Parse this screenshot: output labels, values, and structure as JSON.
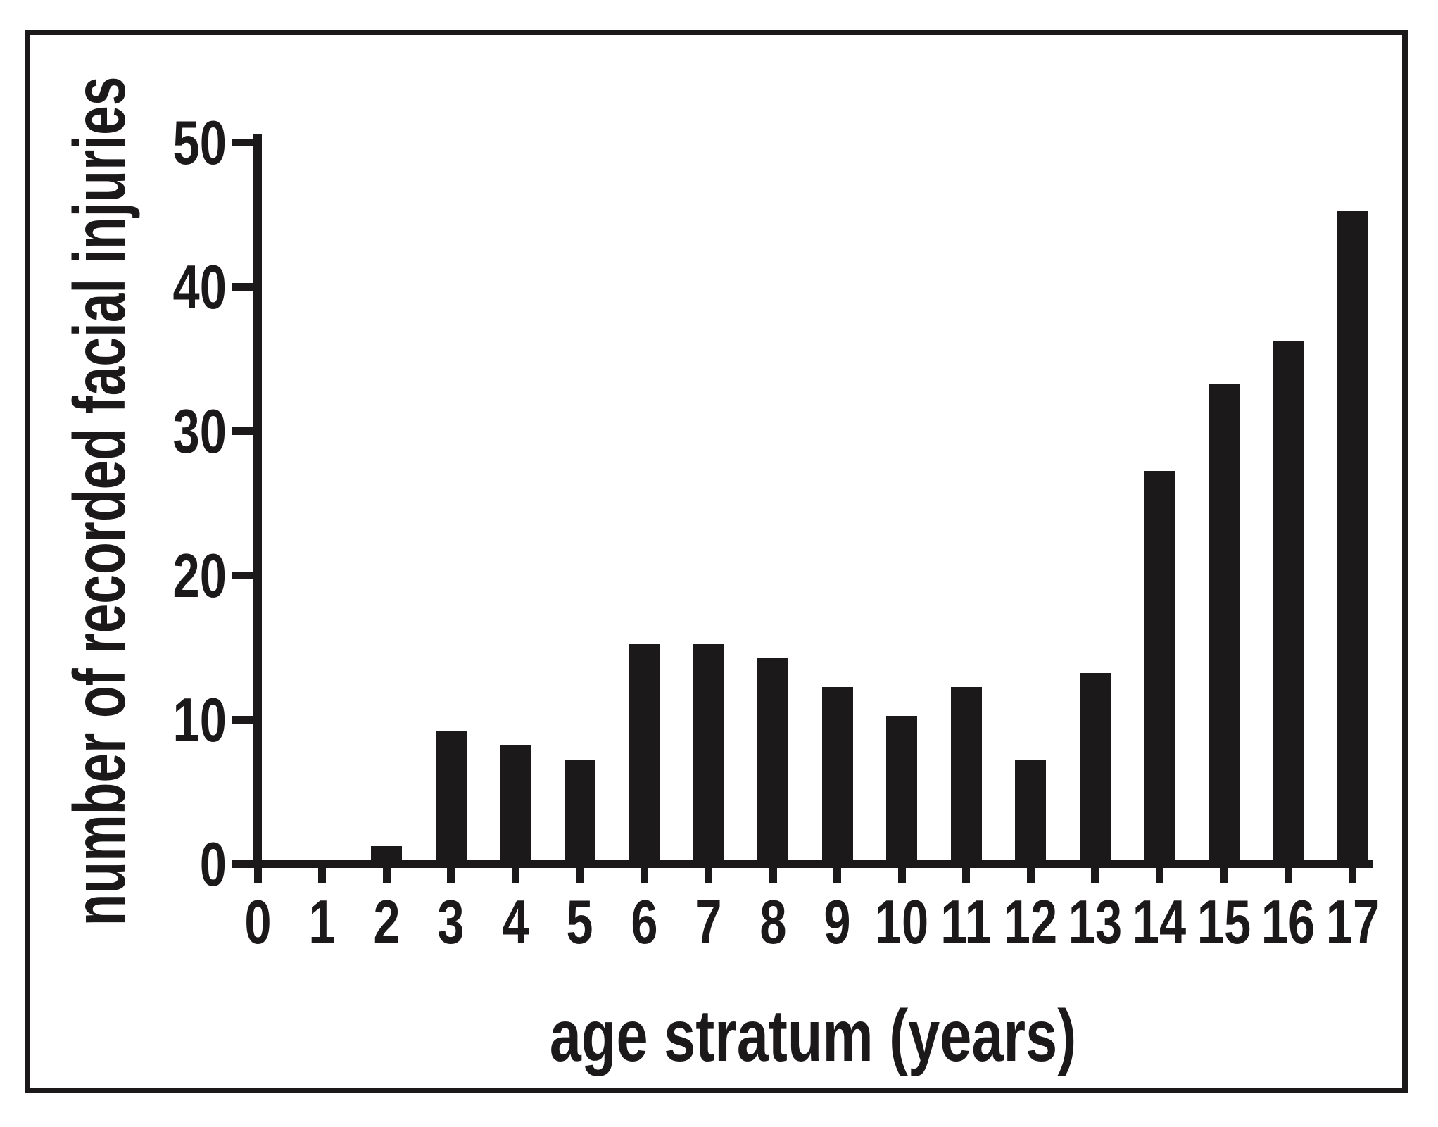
{
  "figure": {
    "background": "#ffffff",
    "ink_color": "#1c191a",
    "border_visible": true
  },
  "chart_data": {
    "type": "bar",
    "title": "",
    "xlabel": "age stratum (years)",
    "ylabel": "number of recorded facial injuries",
    "categories": [
      "0",
      "1",
      "2",
      "3",
      "4",
      "5",
      "6",
      "7",
      "8",
      "9",
      "10",
      "11",
      "12",
      "13",
      "14",
      "15",
      "16",
      "17"
    ],
    "values": [
      0,
      0,
      1,
      9,
      8,
      7,
      15,
      15,
      14,
      12,
      10,
      12,
      7,
      13,
      27,
      33,
      36,
      45
    ],
    "series_name": "number of recorded facial injuries",
    "ylim": [
      0,
      50
    ],
    "yticks": [
      0,
      10,
      20,
      30,
      40,
      50
    ],
    "grid": false,
    "legend": "none",
    "bar_color": "#1c191a",
    "orientation": "vertical"
  }
}
